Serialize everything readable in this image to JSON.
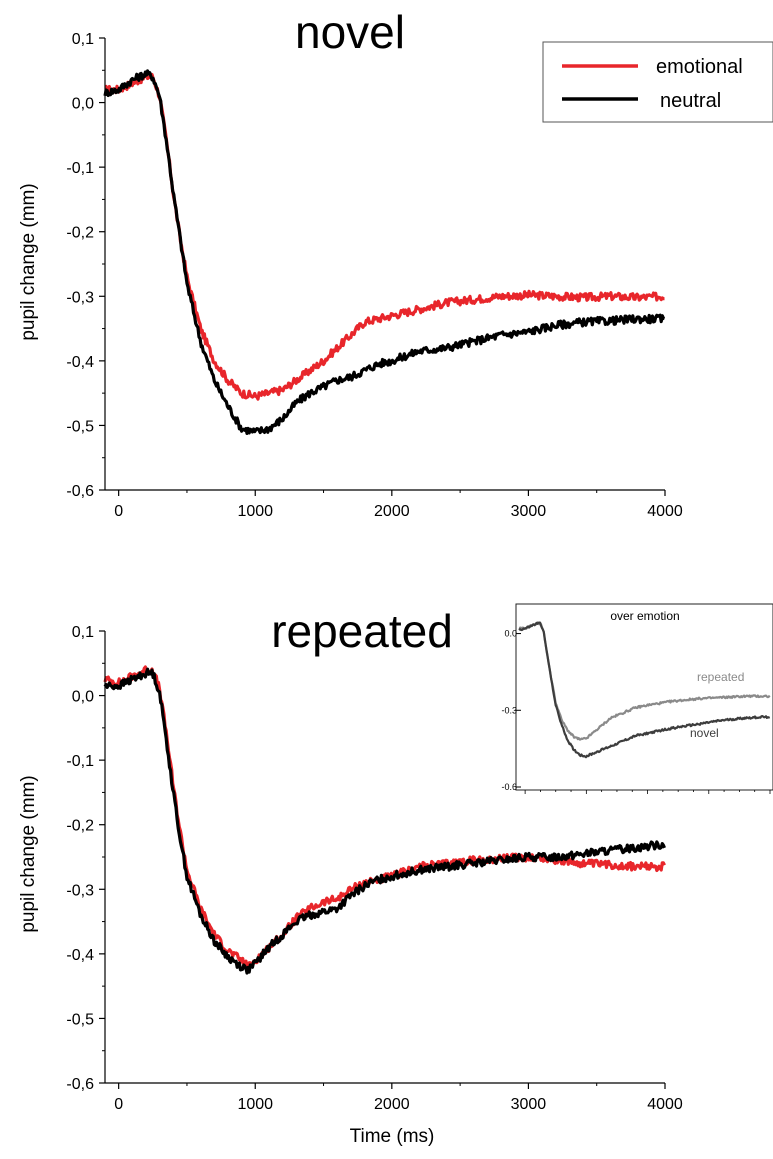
{
  "colors": {
    "emotional": "#e8262b",
    "neutral": "#000000",
    "inset_repeated": "#8a8a8a",
    "inset_novel": "#3d3d3d",
    "axis": "#000000"
  },
  "chart_data": [
    {
      "type": "line",
      "title": "novel",
      "xlabel": "",
      "ylabel": "pupil change (mm)",
      "xlim": [
        -100,
        4000
      ],
      "ylim": [
        -0.6,
        0.1
      ],
      "xticks": [
        "0",
        "1000",
        "2000",
        "3000",
        "4000"
      ],
      "yticks": [
        "0,1",
        "0,0",
        "-0,1",
        "-0,2",
        "-0,3",
        "-0,4",
        "-0,5",
        "-0,6"
      ],
      "legend": {
        "placement": "top-right",
        "entries": [
          "emotional",
          "neutral"
        ]
      },
      "x": [
        -100,
        0,
        100,
        200,
        250,
        300,
        350,
        400,
        450,
        500,
        600,
        700,
        800,
        900,
        1000,
        1100,
        1200,
        1300,
        1400,
        1500,
        1600,
        1700,
        1800,
        1900,
        2000,
        2200,
        2400,
        2600,
        2800,
        3000,
        3200,
        3400,
        3600,
        3800,
        4000
      ],
      "series": [
        {
          "name": "emotional",
          "color_key": "emotional",
          "values": [
            0.02,
            0.02,
            0.03,
            0.04,
            0.04,
            0.01,
            -0.06,
            -0.14,
            -0.21,
            -0.27,
            -0.35,
            -0.4,
            -0.43,
            -0.45,
            -0.455,
            -0.45,
            -0.445,
            -0.43,
            -0.415,
            -0.4,
            -0.38,
            -0.36,
            -0.34,
            -0.335,
            -0.33,
            -0.32,
            -0.31,
            -0.305,
            -0.3,
            -0.298,
            -0.3,
            -0.302,
            -0.3,
            -0.302,
            -0.3
          ]
        },
        {
          "name": "neutral",
          "color_key": "neutral",
          "values": [
            0.015,
            0.02,
            0.035,
            0.045,
            0.04,
            0.01,
            -0.06,
            -0.14,
            -0.21,
            -0.28,
            -0.37,
            -0.43,
            -0.47,
            -0.505,
            -0.51,
            -0.505,
            -0.49,
            -0.465,
            -0.45,
            -0.44,
            -0.43,
            -0.425,
            -0.415,
            -0.405,
            -0.4,
            -0.385,
            -0.38,
            -0.37,
            -0.36,
            -0.355,
            -0.345,
            -0.34,
            -0.338,
            -0.335,
            -0.335
          ]
        }
      ]
    },
    {
      "type": "line",
      "title": "repeated",
      "xlabel": "Time (ms)",
      "ylabel": "pupil change (mm)",
      "xlim": [
        -100,
        4000
      ],
      "ylim": [
        -0.6,
        0.1
      ],
      "xticks": [
        "0",
        "1000",
        "2000",
        "3000",
        "4000"
      ],
      "yticks": [
        "0,1",
        "0,0",
        "-0,1",
        "-0,2",
        "-0,3",
        "-0,4",
        "-0,5",
        "-0,6"
      ],
      "x": [
        -100,
        0,
        100,
        200,
        250,
        300,
        350,
        400,
        450,
        500,
        600,
        700,
        800,
        900,
        950,
        1000,
        1100,
        1200,
        1300,
        1400,
        1500,
        1600,
        1700,
        1800,
        1900,
        2000,
        2200,
        2400,
        2600,
        2800,
        3000,
        3200,
        3400,
        3600,
        3800,
        4000
      ],
      "series": [
        {
          "name": "emotional",
          "color_key": "emotional",
          "values": [
            0.025,
            0.02,
            0.03,
            0.04,
            0.04,
            0.01,
            -0.06,
            -0.14,
            -0.21,
            -0.27,
            -0.33,
            -0.37,
            -0.395,
            -0.41,
            -0.42,
            -0.41,
            -0.39,
            -0.37,
            -0.345,
            -0.33,
            -0.32,
            -0.315,
            -0.3,
            -0.29,
            -0.285,
            -0.28,
            -0.265,
            -0.26,
            -0.255,
            -0.252,
            -0.25,
            -0.255,
            -0.26,
            -0.262,
            -0.265,
            -0.265
          ]
        },
        {
          "name": "neutral",
          "color_key": "neutral",
          "values": [
            0.015,
            0.015,
            0.025,
            0.035,
            0.035,
            0.005,
            -0.07,
            -0.15,
            -0.22,
            -0.28,
            -0.34,
            -0.38,
            -0.405,
            -0.42,
            -0.425,
            -0.415,
            -0.39,
            -0.37,
            -0.35,
            -0.34,
            -0.335,
            -0.33,
            -0.31,
            -0.295,
            -0.285,
            -0.28,
            -0.27,
            -0.265,
            -0.26,
            -0.255,
            -0.25,
            -0.25,
            -0.245,
            -0.24,
            -0.235,
            -0.23
          ]
        }
      ],
      "inset": {
        "title": "over emotion",
        "yticks": [
          "0.0",
          "-0.3",
          "-0.6"
        ],
        "ylim": [
          -0.6,
          0.1
        ],
        "xlim": [
          -100,
          4000
        ],
        "x": [
          -100,
          0,
          100,
          200,
          250,
          300,
          400,
          500,
          600,
          700,
          800,
          900,
          1000,
          1200,
          1400,
          1600,
          1800,
          2000,
          2400,
          2800,
          3200,
          3600,
          4000
        ],
        "series": [
          {
            "name": "repeated",
            "color_key": "inset_repeated",
            "values": [
              0.02,
              0.02,
              0.03,
              0.04,
              0.04,
              0.01,
              -0.14,
              -0.27,
              -0.34,
              -0.38,
              -0.405,
              -0.415,
              -0.41,
              -0.37,
              -0.33,
              -0.31,
              -0.29,
              -0.28,
              -0.265,
              -0.255,
              -0.25,
              -0.245,
              -0.245
            ]
          },
          {
            "name": "novel",
            "color_key": "inset_novel",
            "values": [
              0.015,
              0.02,
              0.03,
              0.04,
              0.04,
              0.01,
              -0.14,
              -0.28,
              -0.36,
              -0.42,
              -0.455,
              -0.475,
              -0.48,
              -0.46,
              -0.44,
              -0.42,
              -0.4,
              -0.39,
              -0.37,
              -0.355,
              -0.34,
              -0.33,
              -0.325
            ]
          }
        ]
      }
    }
  ]
}
